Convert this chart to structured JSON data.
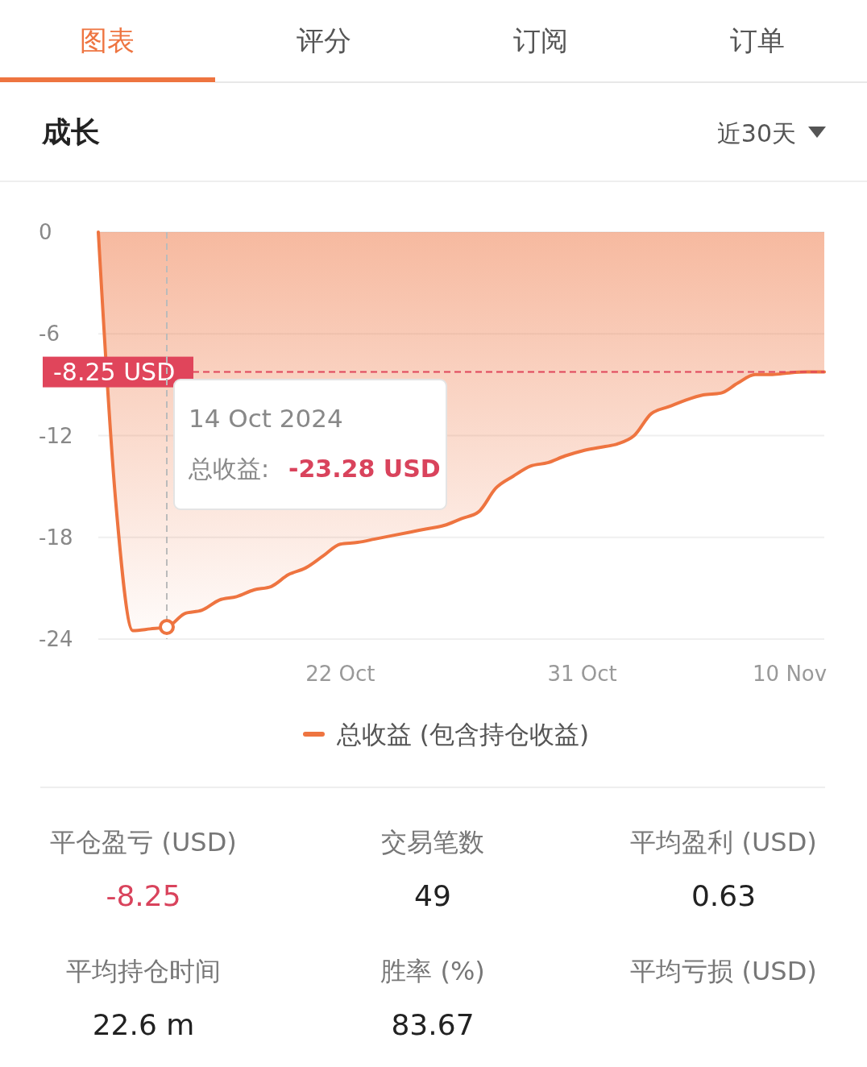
{
  "chart_data": {
    "type": "area",
    "title": "成长",
    "categories": [
      null,
      null,
      null,
      null,
      null,
      null,
      null,
      null,
      null,
      null,
      null,
      null,
      null,
      null,
      "22 Oct",
      null,
      null,
      null,
      null,
      null,
      null,
      null,
      null,
      null,
      null,
      null,
      null,
      null,
      "31 Oct",
      null,
      null,
      null,
      null,
      null,
      null,
      null,
      null,
      null,
      null,
      null,
      "10 Nov",
      null,
      null
    ],
    "series": [
      {
        "name": "总收益 (包含持仓收益)",
        "color": "#ee7440",
        "values": [
          0,
          -15.8,
          -23.5,
          -23.4,
          -23.28,
          -22.5,
          -22.3,
          -21.7,
          -21.5,
          -21.1,
          -20.9,
          -20.2,
          -19.8,
          -19.1,
          -18.4,
          -18.3,
          -18.1,
          -17.9,
          -17.7,
          -17.5,
          -17.3,
          -16.9,
          -16.5,
          -15.1,
          -14.4,
          -13.8,
          -13.6,
          -13.2,
          -12.9,
          -12.7,
          -12.5,
          -12.0,
          -10.7,
          -10.3,
          -9.9,
          -9.6,
          -9.5,
          -8.9,
          -8.4,
          -8.4,
          -8.3,
          -8.25,
          -8.25
        ]
      }
    ],
    "ylim": [
      -24,
      0
    ],
    "yticks": [
      0,
      -6,
      -12,
      -18,
      -24
    ],
    "grid": "y",
    "legend": "bottom",
    "marker": "none",
    "ref_lines": [
      {
        "axis": "y",
        "value": -8.25,
        "label": "-8.25 USD",
        "color": "#e0455b",
        "line_style": "dashed"
      }
    ],
    "annotations": [
      "图表",
      "评分",
      "订阅",
      "订单",
      "近30天",
      "14 Oct 2024",
      "总收益:",
      "-23.28 USD",
      "平仓盈亏 (USD)",
      "-8.25",
      "交易笔数",
      "49",
      "平均盈利 (USD)",
      "0.63",
      "平均持仓时间",
      "22.6 m",
      "胜率 (%)",
      "83.67",
      "平均亏损 (USD)"
    ]
  }
}
